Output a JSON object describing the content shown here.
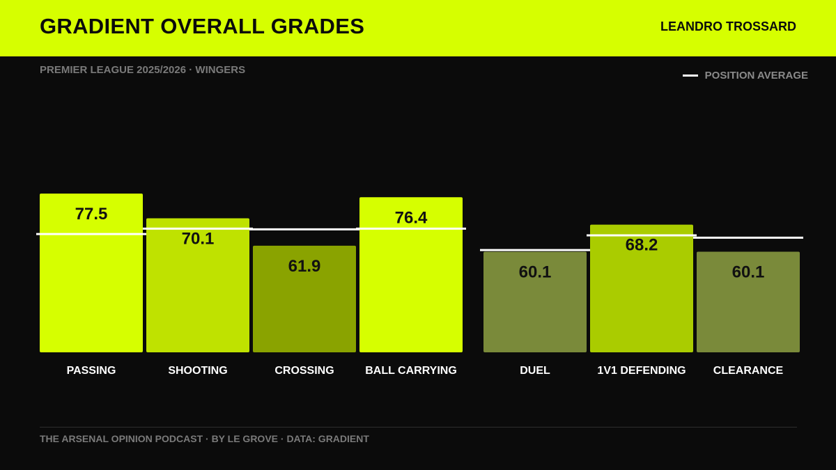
{
  "header": {
    "title": "GRADIENT OVERALL GRADES",
    "player": "LEANDRO TROSSARD"
  },
  "subtitle": "PREMIER LEAGUE 2025/2026 · WINGERS",
  "legend": {
    "label": "POSITION AVERAGE"
  },
  "footer": "THE ARSENAL OPINION PODCAST · BY LE GROVE · DATA: GRADIENT",
  "colors": {
    "header_bg": "#d6ff00",
    "background": "#0b0b0b",
    "average_line": "#ffffff"
  },
  "chart_data": {
    "type": "bar",
    "title": "GRADIENT OVERALL GRADES",
    "groups": [
      {
        "categories": [
          "PASSING",
          "SHOOTING",
          "CROSSING",
          "BALL CARRYING"
        ]
      },
      {
        "categories": [
          "DUEL",
          "1V1 DEFENDING",
          "CLEARANCE"
        ]
      }
    ],
    "categories": [
      "PASSING",
      "SHOOTING",
      "CROSSING",
      "BALL CARRYING",
      "DUEL",
      "1V1 DEFENDING",
      "CLEARANCE"
    ],
    "series": [
      {
        "values": [
          77.5,
          70.1,
          61.9,
          76.4,
          60.1,
          68.2,
          60.1
        ],
        "value_labels": [
          "77.5",
          "70.1",
          "61.9",
          "76.4",
          "60.1",
          "68.2",
          "60.1"
        ],
        "colors": [
          "#d6ff00",
          "#bfe200",
          "#8aa300",
          "#d6ff00",
          "#7a8a3a",
          "#aacc00",
          "#7a8a3a"
        ]
      },
      {
        "name": "POSITION AVERAGE",
        "values": [
          65.4,
          67.0,
          66.8,
          67.0,
          60.6,
          65.0,
          64.3
        ]
      }
    ],
    "ylim": [
      30,
      80
    ],
    "grid": false,
    "legend_position": "top-right"
  }
}
